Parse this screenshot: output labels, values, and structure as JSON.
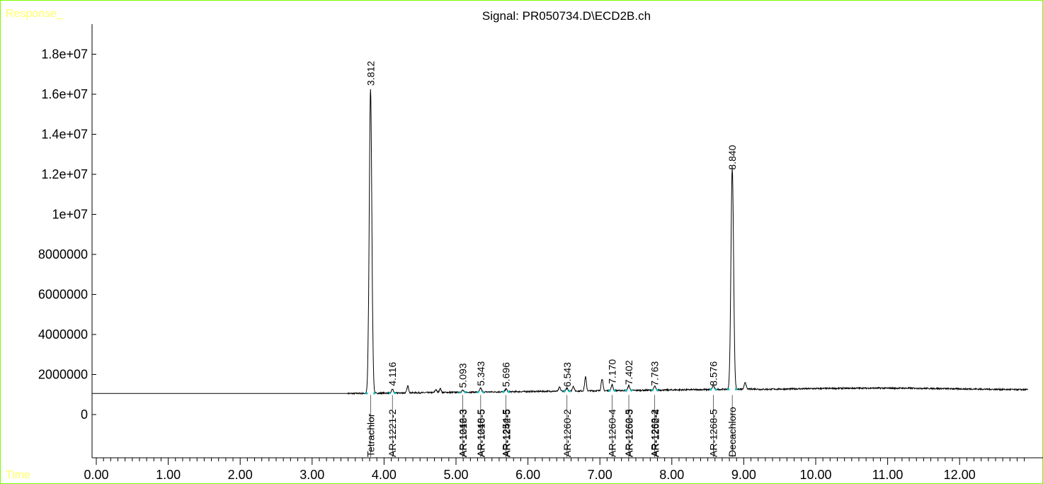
{
  "header": {
    "response_label": "Response_",
    "time_label": "Time"
  },
  "colors": {
    "frame": "#7CFC00",
    "corner_text": "#FFFF66",
    "trace": "#000000",
    "baseline_marker": "#00C0C0"
  },
  "chart_data": {
    "type": "line",
    "title": "Signal: PR050734.D\\ECD2B.ch",
    "xlabel": "Time",
    "ylabel": "Response_",
    "xlim": [
      0.0,
      12.95
    ],
    "ylim": [
      -2000000,
      19500000
    ],
    "x_ticks": [
      "0.00",
      "1.00",
      "2.00",
      "3.00",
      "4.00",
      "5.00",
      "6.00",
      "7.00",
      "8.00",
      "9.00",
      "10.00",
      "11.00",
      "12.00"
    ],
    "y_ticks": [
      {
        "value": 0,
        "label": "0"
      },
      {
        "value": 2000000,
        "label": "2000000"
      },
      {
        "value": 4000000,
        "label": "4000000"
      },
      {
        "value": 6000000,
        "label": "6000000"
      },
      {
        "value": 8000000,
        "label": "8000000"
      },
      {
        "value": 10000000,
        "label": "1e+07"
      },
      {
        "value": 12000000,
        "label": "1.2e+07"
      },
      {
        "value": 14000000,
        "label": "1.4e+07"
      },
      {
        "value": 16000000,
        "label": "1.6e+07"
      },
      {
        "value": 18000000,
        "label": "1.8e+07"
      }
    ],
    "baseline": 1050000,
    "trace_start_time": 3.5,
    "trace_end_time": 12.95,
    "labeled_peaks": [
      {
        "rt": 3.812,
        "label": "3.812",
        "height": 16250000
      },
      {
        "rt": 4.116,
        "label": "4.116",
        "height": 1250000
      },
      {
        "rt": 5.093,
        "label": "5.093",
        "height": 1150000
      },
      {
        "rt": 5.343,
        "label": "5.343",
        "height": 1250000
      },
      {
        "rt": 5.696,
        "label": "5.696",
        "height": 1200000
      },
      {
        "rt": 6.543,
        "label": "6.543",
        "height": 1200000
      },
      {
        "rt": 7.17,
        "label": "7.170",
        "height": 1350000
      },
      {
        "rt": 7.402,
        "label": "7.402",
        "height": 1300000
      },
      {
        "rt": 7.763,
        "label": "7.763",
        "height": 1250000
      },
      {
        "rt": 8.576,
        "label": "8.576",
        "height": 1250000
      },
      {
        "rt": 8.84,
        "label": "8.840",
        "height": 12050000
      }
    ],
    "minor_peaks": [
      {
        "rt": 4.33,
        "height": 1400000
      },
      {
        "rt": 4.72,
        "height": 1200000
      },
      {
        "rt": 4.78,
        "height": 1250000
      },
      {
        "rt": 6.44,
        "height": 1250000
      },
      {
        "rt": 6.63,
        "height": 1300000
      },
      {
        "rt": 6.8,
        "height": 1750000
      },
      {
        "rt": 7.03,
        "height": 1650000
      },
      {
        "rt": 9.02,
        "height": 1400000
      }
    ],
    "compounds": [
      {
        "rt": 3.812,
        "names": [
          "Tetrachlor"
        ]
      },
      {
        "rt": 4.116,
        "names": [
          "AR-1221-2"
        ]
      },
      {
        "rt": 5.093,
        "names": [
          "AR-1242-3",
          "AR-1016-3"
        ]
      },
      {
        "rt": 5.343,
        "names": [
          "AR-1248-5",
          "AR-1016-5"
        ]
      },
      {
        "rt": 5.696,
        "names": [
          "AR-1254-5",
          "AR-1242-5"
        ]
      },
      {
        "rt": 6.543,
        "names": [
          "AR-1260-2"
        ]
      },
      {
        "rt": 7.17,
        "names": [
          "AR-1260-4"
        ]
      },
      {
        "rt": 7.402,
        "names": [
          "AR-1262-5",
          "AR-1260-3"
        ]
      },
      {
        "rt": 7.763,
        "names": [
          "AR-1268-2",
          "AR-1262-4"
        ]
      },
      {
        "rt": 8.576,
        "names": [
          "AR-1268-5"
        ]
      },
      {
        "rt": 8.84,
        "names": [
          "Decachloro"
        ]
      }
    ]
  }
}
